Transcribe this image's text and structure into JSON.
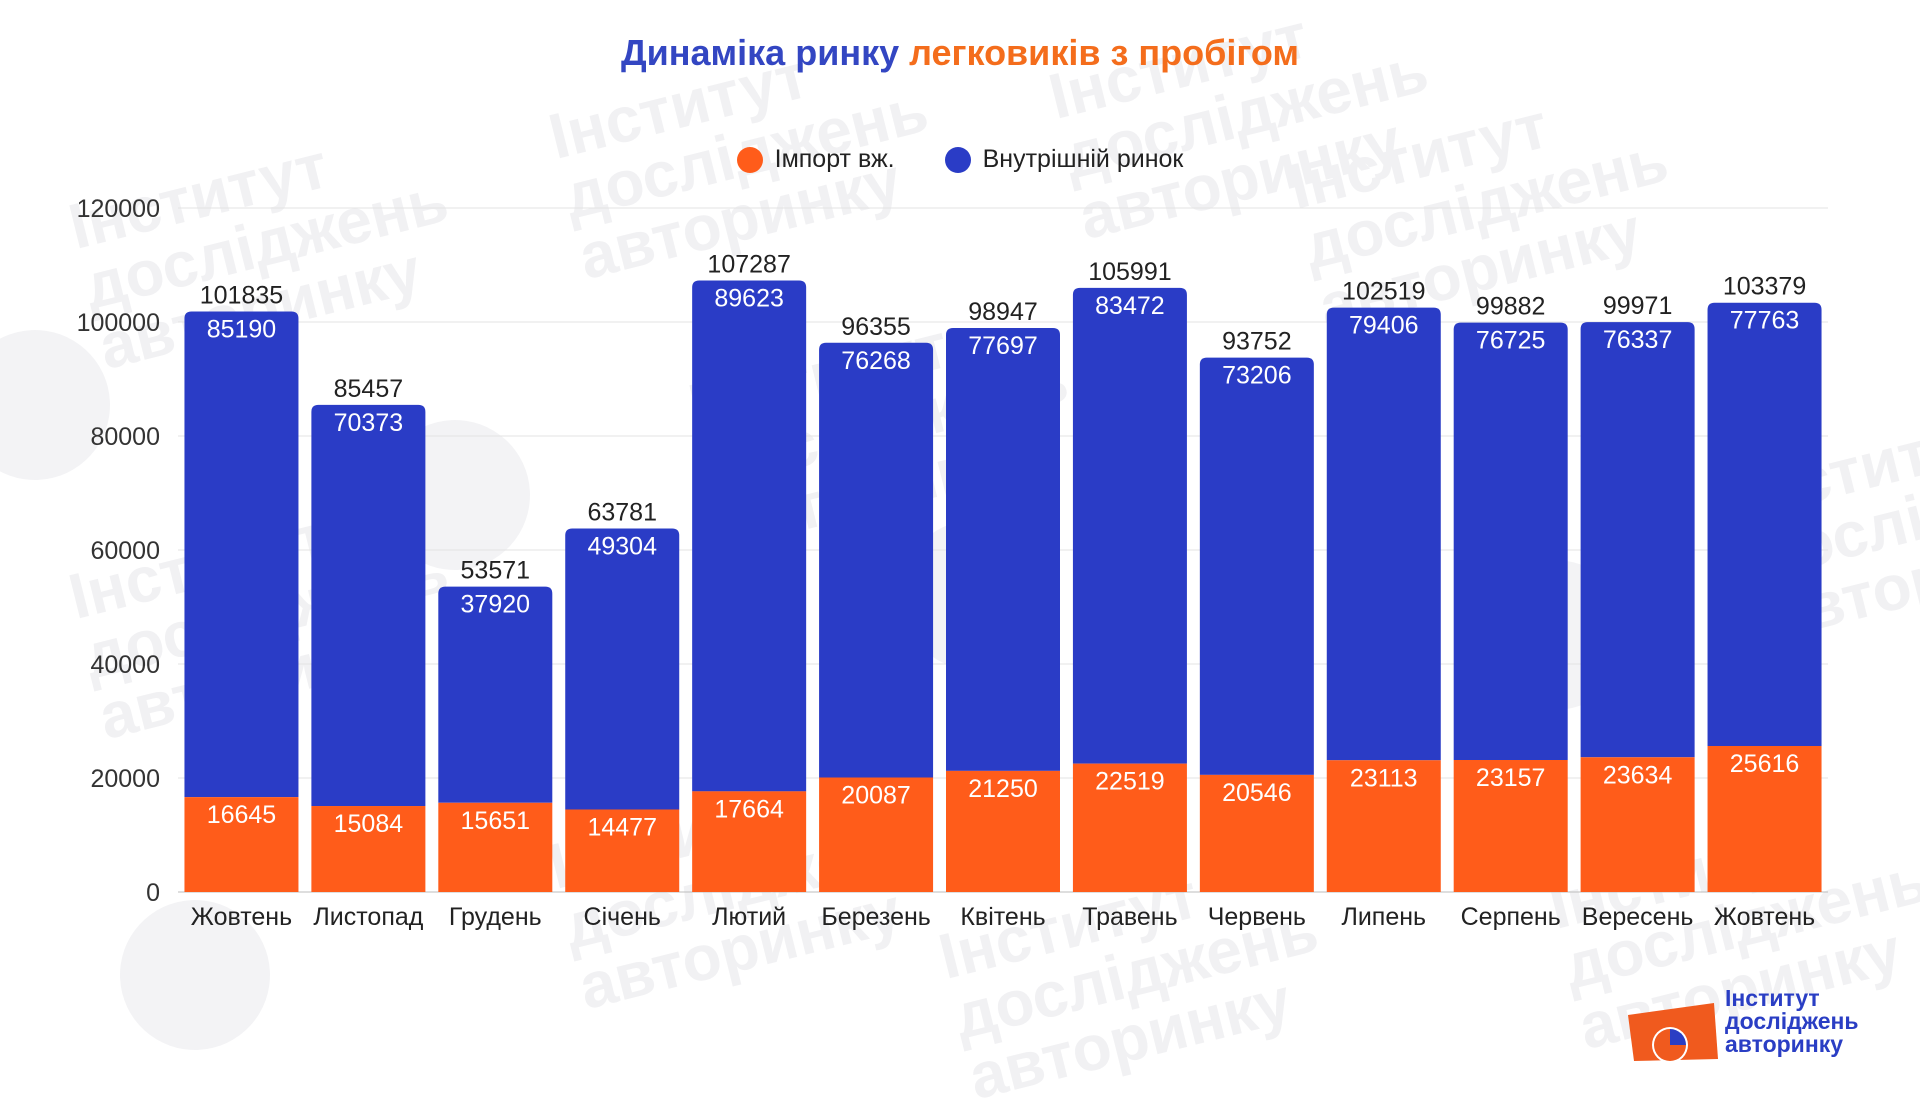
{
  "title": {
    "part1": "Динаміка ринку ",
    "part2": "легковиків з пробігом"
  },
  "colors": {
    "import": "#ff5c1a",
    "domestic": "#2a3cc6",
    "title_blue": "#3346c2",
    "title_orange": "#f46d1c"
  },
  "watermark": {
    "line1": "Інститут",
    "line2": "досліджень",
    "line3": "авторинку"
  },
  "brand": {
    "line1": "Інститут",
    "line2": "досліджень",
    "line3": "авторинку"
  },
  "chart_data": {
    "type": "bar",
    "stacked": true,
    "categories": [
      "Жовтень",
      "Листопад",
      "Грудень",
      "Січень",
      "Лютий",
      "Березень",
      "Квітень",
      "Травень",
      "Червень",
      "Липень",
      "Серпень",
      "Вересень",
      "Жовтень"
    ],
    "series": [
      {
        "name": "Імпорт вж.",
        "color": "#ff5c1a",
        "values": [
          16645,
          15084,
          15651,
          14477,
          17664,
          20087,
          21250,
          22519,
          20546,
          23113,
          23157,
          23634,
          25616
        ]
      },
      {
        "name": "Внутрішній ринок",
        "color": "#2a3cc6",
        "values": [
          85190,
          70373,
          37920,
          49304,
          89623,
          76268,
          77697,
          83472,
          73206,
          79406,
          76725,
          76337,
          77763
        ]
      }
    ],
    "totals": [
      101835,
      85457,
      53571,
      63781,
      107287,
      96355,
      98947,
      105991,
      93752,
      102519,
      99882,
      99971,
      103379
    ],
    "yticks": [
      0,
      20000,
      40000,
      60000,
      80000,
      100000,
      120000
    ],
    "ylim": [
      0,
      120000
    ],
    "grid": true,
    "legend_position": "top-center"
  }
}
